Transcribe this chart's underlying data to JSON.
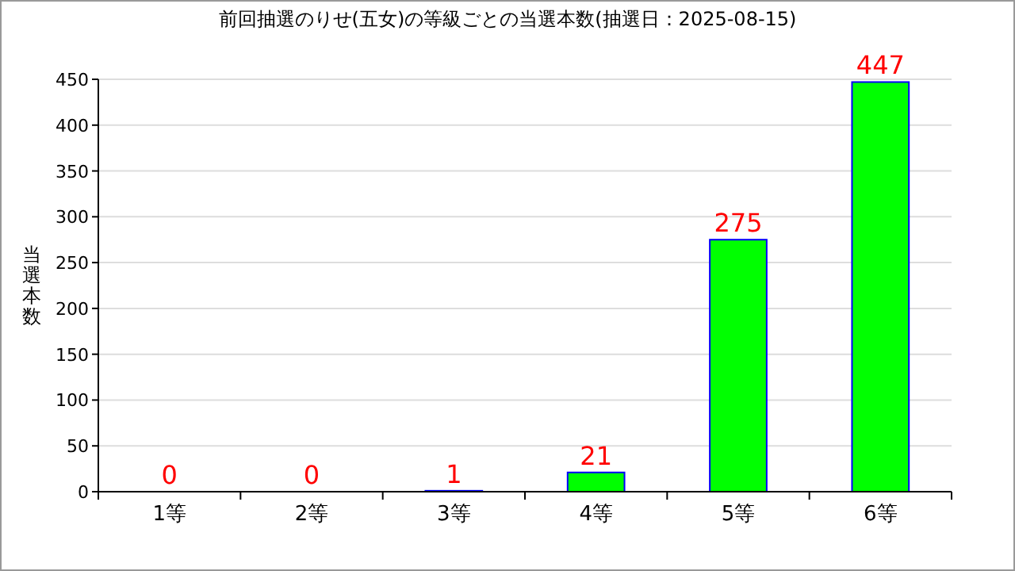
{
  "chart_data": {
    "type": "bar",
    "title": "前回抽選のりせ(五女)の等級ごとの当選本数(抽選日：2025-08-15)",
    "ylabel": "当選本数",
    "categories": [
      "1等",
      "2等",
      "3等",
      "4等",
      "5等",
      "6等"
    ],
    "values": [
      0,
      0,
      1,
      21,
      275,
      447
    ],
    "color": "#00ff00",
    "ylim": [
      0,
      450
    ],
    "yticks": [
      0,
      50,
      100,
      150,
      200,
      250,
      300,
      350,
      400,
      450
    ],
    "grid": "y",
    "data_labels": true
  }
}
